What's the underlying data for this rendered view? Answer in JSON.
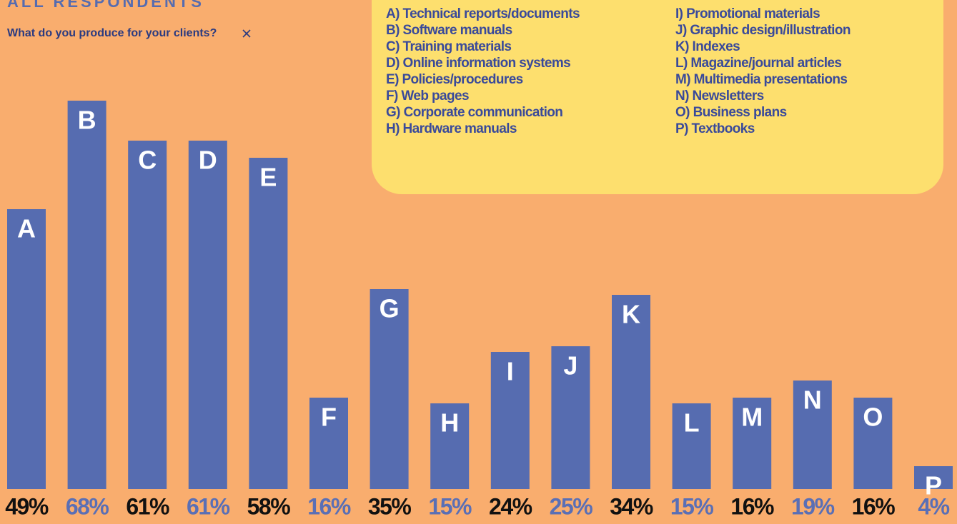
{
  "chart_data": {
    "type": "bar",
    "title": "ALL RESPONDENTS",
    "subtitle": "What do you produce for your clients?",
    "categories": [
      "A",
      "B",
      "C",
      "D",
      "E",
      "F",
      "G",
      "H",
      "I",
      "J",
      "K",
      "L",
      "M",
      "N",
      "O",
      "P"
    ],
    "values": [
      49,
      68,
      61,
      61,
      58,
      16,
      35,
      15,
      24,
      25,
      34,
      15,
      16,
      19,
      16,
      4
    ],
    "value_labels": [
      "49%",
      "68%",
      "61%",
      "61%",
      "58%",
      "16%",
      "35%",
      "15%",
      "24%",
      "25%",
      "34%",
      "15%",
      "16%",
      "19%",
      "16%",
      "4%"
    ],
    "color": "#566cb0",
    "label_colors": [
      "#111111",
      "#5a6fb5"
    ],
    "legend_items": [
      "A) Technical reports/documents",
      "B) Software manuals",
      "C) Training materials",
      "D) Online information systems",
      "E) Policies/procedures",
      "F) Web pages",
      "G) Corporate communication",
      "H) Hardware manuals",
      "I) Promotional materials",
      "J) Graphic design/illustration",
      "K) Indexes",
      "L) Magazine/journal articles",
      "M) Multimedia presentations",
      "N) Newsletters",
      "O) Business plans",
      "P) Textbooks"
    ]
  }
}
